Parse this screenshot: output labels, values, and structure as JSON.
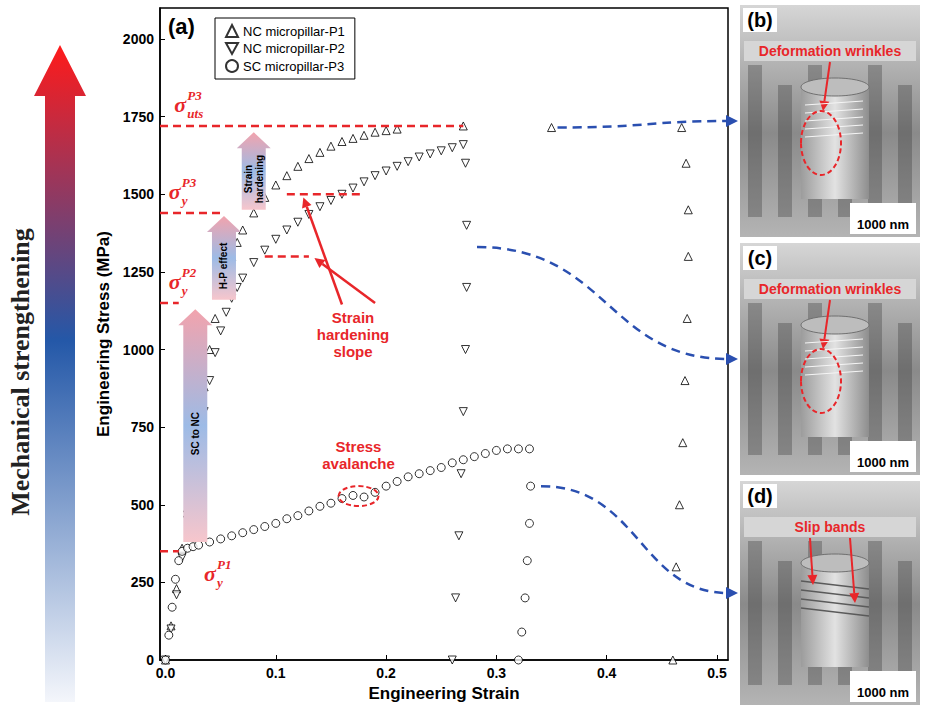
{
  "chart_data": {
    "type": "scatter",
    "panel_label": "(a)",
    "side_label": "Mechanical strengthening",
    "xlabel": "Engineering Strain",
    "ylabel": "Engineering Stress (MPa)",
    "xlim": [
      -0.005,
      0.51
    ],
    "ylim": [
      0,
      2100
    ],
    "xticks": [
      {
        "value": 0,
        "label": "0.0"
      },
      0.1,
      0.2,
      0.3,
      0.4,
      0.5
    ],
    "yticks": [
      0,
      250,
      500,
      750,
      1000,
      1250,
      1500,
      1750,
      2000
    ],
    "grid": false,
    "legend": "upper left",
    "series": [
      {
        "name": "NC micropillar-P1",
        "marker": "triangle",
        "color": "#000000",
        "x": [
          0,
          0.005,
          0.01,
          0.015,
          0.02,
          0.025,
          0.03,
          0.035,
          0.04,
          0.045,
          0.05,
          0.055,
          0.06,
          0.065,
          0.07,
          0.08,
          0.09,
          0.1,
          0.11,
          0.12,
          0.13,
          0.14,
          0.15,
          0.16,
          0.17,
          0.18,
          0.19,
          0.2,
          0.21,
          0.27,
          0.35,
          0.468,
          0.472,
          0.474,
          0.474,
          0.473,
          0.471,
          0.469,
          0.466,
          0.463,
          0.46
        ],
        "values": [
          0,
          110,
          230,
          360,
          490,
          620,
          750,
          880,
          1000,
          1100,
          1180,
          1250,
          1300,
          1345,
          1385,
          1440,
          1490,
          1530,
          1560,
          1590,
          1615,
          1635,
          1655,
          1670,
          1680,
          1690,
          1700,
          1705,
          1710,
          1720,
          1715,
          1715,
          1600,
          1450,
          1300,
          1100,
          900,
          700,
          500,
          300,
          0
        ]
      },
      {
        "name": "NC micropillar-P2",
        "marker": "triangle-down",
        "color": "#000000",
        "x": [
          0,
          0.005,
          0.01,
          0.015,
          0.02,
          0.025,
          0.03,
          0.035,
          0.04,
          0.045,
          0.05,
          0.055,
          0.06,
          0.065,
          0.07,
          0.08,
          0.09,
          0.1,
          0.11,
          0.12,
          0.13,
          0.14,
          0.15,
          0.16,
          0.17,
          0.18,
          0.19,
          0.2,
          0.21,
          0.22,
          0.23,
          0.24,
          0.25,
          0.26,
          0.27,
          0.272,
          0.273,
          0.273,
          0.272,
          0.27,
          0.268,
          0.266,
          0.263,
          0.26
        ],
        "values": [
          0,
          100,
          210,
          330,
          450,
          570,
          690,
          800,
          900,
          990,
          1060,
          1120,
          1165,
          1200,
          1230,
          1280,
          1320,
          1355,
          1385,
          1410,
          1435,
          1460,
          1480,
          1500,
          1520,
          1540,
          1560,
          1575,
          1590,
          1605,
          1620,
          1630,
          1640,
          1650,
          1660,
          1600,
          1400,
          1200,
          1000,
          800,
          600,
          400,
          200,
          0
        ]
      },
      {
        "name": "SC micropillar-P3",
        "marker": "circle",
        "color": "#000000",
        "x": [
          0,
          0.003,
          0.006,
          0.009,
          0.012,
          0.015,
          0.02,
          0.025,
          0.03,
          0.04,
          0.05,
          0.06,
          0.07,
          0.08,
          0.09,
          0.1,
          0.11,
          0.12,
          0.13,
          0.14,
          0.15,
          0.16,
          0.17,
          0.18,
          0.19,
          0.2,
          0.21,
          0.22,
          0.23,
          0.24,
          0.25,
          0.26,
          0.27,
          0.28,
          0.29,
          0.3,
          0.31,
          0.32,
          0.33,
          0.331,
          0.33,
          0.328,
          0.326,
          0.323,
          0.32
        ],
        "values": [
          0,
          80,
          170,
          260,
          320,
          350,
          360,
          365,
          370,
          380,
          390,
          400,
          410,
          420,
          430,
          440,
          455,
          465,
          480,
          495,
          505,
          520,
          530,
          525,
          540,
          560,
          575,
          590,
          600,
          610,
          620,
          635,
          645,
          655,
          665,
          675,
          680,
          680,
          680,
          560,
          440,
          320,
          200,
          90,
          0
        ]
      }
    ],
    "stress_levels": [
      {
        "symbol": "σ",
        "sub": "uts",
        "sup": "P3",
        "value": 1720,
        "x_from": -0.005,
        "x_to": 0.27,
        "label_at": [
          0.008,
          1790
        ]
      },
      {
        "symbol": "σ",
        "sub": "y",
        "sup": "P3",
        "value": 1440,
        "x_from": -0.005,
        "x_to": 0.05,
        "label_at": [
          0.003,
          1510
        ]
      },
      {
        "symbol": "σ",
        "sub": "y",
        "sup": "P2",
        "value": 1150,
        "x_from": -0.005,
        "x_to": 0.012,
        "label_at": [
          0.003,
          1220
        ]
      },
      {
        "symbol": "σ",
        "sub": "y",
        "sup": "P1",
        "value": 350,
        "x_from": -0.005,
        "x_to": 0.012,
        "label_at": [
          0.035,
          280
        ]
      }
    ],
    "strengthening_arrows": [
      {
        "text": "SC to NC",
        "x": 0.027,
        "from": 380,
        "to": 1130
      },
      {
        "text": "H-P effect",
        "x": 0.053,
        "from": 1160,
        "to": 1430
      },
      {
        "text": "Strain hardening",
        "x": 0.08,
        "from": 1450,
        "to": 1700
      }
    ],
    "slope_lines": [
      {
        "value": 1500,
        "x_from": 0.11,
        "x_to": 0.18
      },
      {
        "value": 1300,
        "x_from": 0.09,
        "x_to": 0.13
      }
    ],
    "slope_label": {
      "text": "Strain hardening slope",
      "at": [
        0.17,
        1050
      ],
      "arrows": [
        {
          "from": [
            0.16,
            1145
          ],
          "to": [
            0.125,
            1490
          ]
        },
        {
          "from": [
            0.19,
            1150
          ],
          "to": [
            0.135,
            1295
          ]
        }
      ]
    },
    "avalanche": {
      "text": "Stress avalanche",
      "at": [
        0.175,
        660
      ],
      "center": [
        0.175,
        528
      ]
    }
  },
  "images": [
    {
      "label": "(b)",
      "annotation": "Deformation wrinkles",
      "scale_bar": "1000 nm",
      "link_from": [
        0.35,
        1715
      ]
    },
    {
      "label": "(c)",
      "annotation": "Deformation wrinkles",
      "scale_bar": "1000 nm",
      "link_from": [
        0.277,
        1330
      ]
    },
    {
      "label": "(d)",
      "annotation": "Slip bands",
      "scale_bar": "1000 nm",
      "link_from": [
        0.335,
        560
      ]
    }
  ]
}
